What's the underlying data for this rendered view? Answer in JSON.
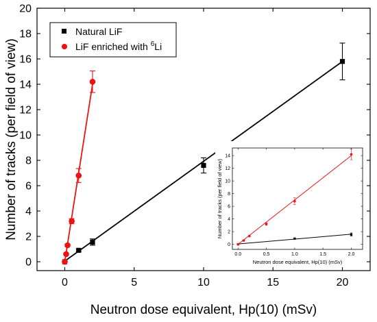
{
  "chart_data": [
    {
      "type": "scatter",
      "xlabel": "Neutron dose equivalent, Hp(10) (mSv)",
      "ylabel": "Number of tracks (per field of view)",
      "xlim": [
        -2,
        22
      ],
      "ylim": [
        -0.7,
        20
      ],
      "xticks": [
        0,
        5,
        10,
        15,
        20
      ],
      "yticks": [
        0,
        2,
        4,
        6,
        8,
        10,
        12,
        14,
        16,
        18,
        20
      ],
      "legend_position": "top-left",
      "grid": false,
      "series": [
        {
          "name": "Natural LiF",
          "color": "#000000",
          "marker": "square",
          "x": [
            0,
            1,
            2,
            10,
            20
          ],
          "y": [
            0.0,
            0.9,
            1.55,
            7.6,
            15.8
          ],
          "err": [
            0.0,
            0.1,
            0.25,
            0.6,
            1.45
          ],
          "fit": [
            [
              0,
              0.05
            ],
            [
              20,
              15.8
            ]
          ]
        },
        {
          "name": "LiF enriched with 6Li",
          "legend_prefix": "LiF enriched with ",
          "legend_sup": "6",
          "legend_suffix": "Li",
          "color": "#ee1111",
          "marker": "circle",
          "x": [
            0,
            0.1,
            0.2,
            0.5,
            1,
            2
          ],
          "y": [
            0.0,
            0.6,
            1.3,
            3.2,
            6.8,
            14.2
          ],
          "err": [
            0.0,
            0.08,
            0.1,
            0.2,
            0.55,
            0.85
          ],
          "fit": [
            [
              0,
              0.0
            ],
            [
              2,
              14.0
            ]
          ]
        }
      ]
    },
    {
      "type": "scatter",
      "inset": true,
      "xlabel": "Neutron dose equivalent, Hp(10) (mSv)",
      "ylabel": "Number of tracks (per field of view)",
      "xlim": [
        -0.1,
        2.2
      ],
      "ylim": [
        -0.8,
        15.2
      ],
      "xticks": [
        0.0,
        0.5,
        1.0,
        1.5,
        2.0
      ],
      "yticks": [
        0,
        2,
        4,
        6,
        8,
        10,
        12,
        14
      ],
      "series": [
        {
          "name": "Natural LiF",
          "color": "#000000",
          "marker": "square",
          "x": [
            0,
            1,
            2
          ],
          "y": [
            0.0,
            0.9,
            1.55
          ],
          "err": [
            0.0,
            0.1,
            0.25
          ],
          "fit": [
            [
              0,
              0.05
            ],
            [
              2,
              1.6
            ]
          ]
        },
        {
          "name": "LiF enriched with 6Li",
          "color": "#ee1111",
          "marker": "circle",
          "x": [
            0,
            0.1,
            0.2,
            0.5,
            1,
            2
          ],
          "y": [
            0.0,
            0.6,
            1.3,
            3.2,
            6.8,
            14.2
          ],
          "err": [
            0.0,
            0.08,
            0.1,
            0.2,
            0.55,
            0.85
          ],
          "fit": [
            [
              0,
              0.0
            ],
            [
              2,
              14.0
            ]
          ]
        }
      ]
    }
  ]
}
